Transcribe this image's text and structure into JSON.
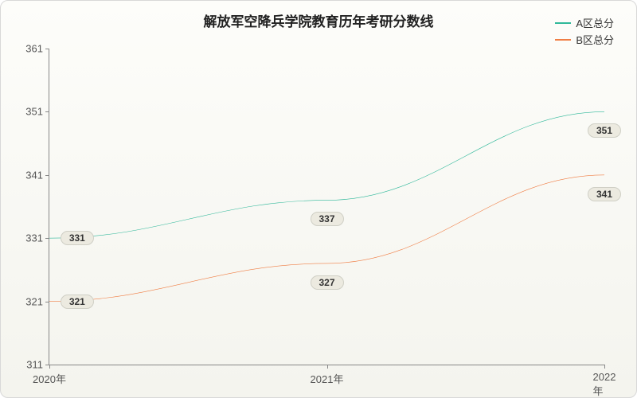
{
  "chart": {
    "type": "line",
    "title": "解放军空降兵学院教育历年考研分数线",
    "title_fontsize": 17,
    "background_gradient": [
      "#fdfdfa",
      "#f4f4ee"
    ],
    "border_color": "#d8d8d8",
    "axis_color": "#888888",
    "tick_label_color": "#555555",
    "pt_label_bg": "#eceae0",
    "pt_label_border": "#cfcfc5",
    "x": {
      "categories": [
        "2020年",
        "2021年",
        "2022年"
      ],
      "positions_pct": [
        0,
        50,
        100
      ]
    },
    "y": {
      "min": 311,
      "max": 361,
      "tick_step": 10,
      "ticks": [
        311,
        321,
        331,
        341,
        351,
        361
      ]
    },
    "series": [
      {
        "name": "A区总分",
        "color": "#2fb89a",
        "width": 2,
        "values": [
          331,
          337,
          351
        ],
        "label_offsets_pct": [
          [
            5,
            0
          ],
          [
            0,
            6
          ],
          [
            0,
            6
          ]
        ]
      },
      {
        "name": "B区总分",
        "color": "#f07e45",
        "width": 2,
        "values": [
          321,
          327,
          341
        ],
        "label_offsets_pct": [
          [
            5,
            0
          ],
          [
            0,
            6
          ],
          [
            0,
            6
          ]
        ]
      }
    ],
    "legend": {
      "position": "top-right",
      "fontsize": 13
    }
  }
}
